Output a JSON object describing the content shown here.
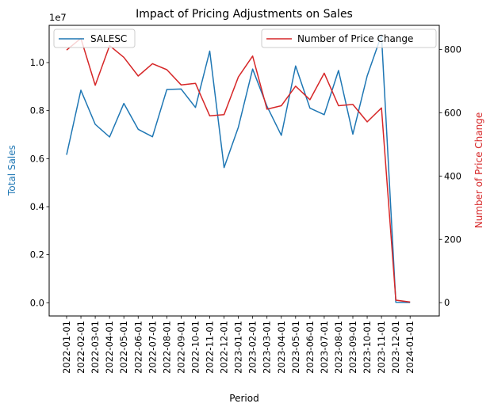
{
  "chart_data": {
    "type": "line",
    "title": "Impact of Pricing Adjustments on Sales",
    "xlabel": "Period",
    "ylabel_left": "Total Sales",
    "ylabel_right": "Number of Price Change",
    "left_axis_offset_label": "1e7",
    "x": [
      "2022-01-01",
      "2022-02-01",
      "2022-03-01",
      "2022-04-01",
      "2022-05-01",
      "2022-06-01",
      "2022-07-01",
      "2022-08-01",
      "2022-09-01",
      "2022-10-01",
      "2022-11-01",
      "2022-12-01",
      "2023-01-01",
      "2023-02-01",
      "2023-03-01",
      "2023-04-01",
      "2023-05-01",
      "2023-06-01",
      "2023-07-01",
      "2023-08-01",
      "2023-09-01",
      "2023-10-01",
      "2023-11-01",
      "2023-12-01",
      "2024-01-01"
    ],
    "left_ticks": [
      "0.0",
      "0.2",
      "0.4",
      "0.6",
      "0.8",
      "1.0"
    ],
    "left_tick_values": [
      0,
      0.2,
      0.4,
      0.6,
      0.8,
      1.0
    ],
    "right_ticks": [
      "0",
      "200",
      "400",
      "600",
      "800"
    ],
    "right_tick_values": [
      0,
      200,
      400,
      600,
      800
    ],
    "ylim_left": [
      -0.055,
      1.155
    ],
    "ylim_right": [
      -42,
      876
    ],
    "series": [
      {
        "name": "SALESC",
        "axis": "left",
        "color": "#1f77b4",
        "values": [
          0.616,
          0.885,
          0.743,
          0.69,
          0.83,
          0.722,
          0.691,
          0.888,
          0.89,
          0.813,
          1.048,
          0.563,
          0.731,
          0.973,
          0.818,
          0.697,
          0.986,
          0.81,
          0.783,
          0.967,
          0.702,
          0.945,
          1.115,
          0.002,
          0.001
        ]
      },
      {
        "name": "Number of Price Change",
        "axis": "right",
        "color": "#d62728",
        "values": [
          798,
          835,
          687,
          812,
          775,
          716,
          755,
          736,
          688,
          693,
          590,
          594,
          713,
          779,
          611,
          622,
          684,
          641,
          725,
          622,
          626,
          571,
          615,
          8,
          2
        ]
      }
    ],
    "legend_left_position": "upper-left",
    "legend_right_position": "upper-right",
    "grid": false
  }
}
